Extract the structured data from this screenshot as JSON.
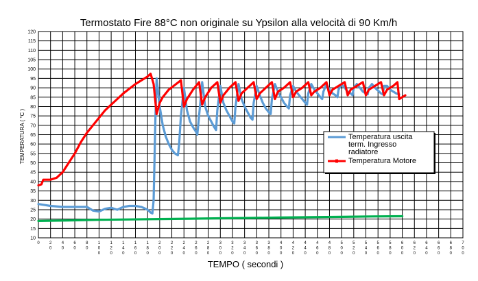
{
  "chart_data": {
    "type": "line",
    "title": "Termostato Fire 88°C  non originale su  Ypsilon alla velocità di 90 Km/h",
    "xlabel": "TEMPO  ( secondi  )",
    "ylabel": "TEMPERATURA  ( °C )",
    "ylim": [
      10,
      120
    ],
    "yticks": [
      10,
      15,
      20,
      25,
      30,
      35,
      40,
      45,
      50,
      55,
      60,
      65,
      70,
      75,
      80,
      85,
      90,
      95,
      100,
      105,
      110,
      115,
      120
    ],
    "xlim": [
      0,
      700
    ],
    "xticks": [
      0,
      20,
      40,
      60,
      80,
      100,
      120,
      140,
      160,
      180,
      200,
      220,
      240,
      260,
      280,
      300,
      320,
      340,
      360,
      380,
      400,
      420,
      440,
      460,
      480,
      500,
      520,
      540,
      560,
      580,
      600,
      620,
      640,
      660,
      680,
      700
    ],
    "xticklabels": [
      "0",
      "2\n0",
      "4\n0",
      "6\n0",
      "8\n0",
      "1\n0\n0",
      "1\n2\n0",
      "1\n4\n0",
      "1\n6\n0",
      "1\n8\n0",
      "2\n0\n0",
      "2\n2\n0",
      "2\n4\n0",
      "2\n6\n0",
      "2\n8\n0",
      "3\n0\n0",
      "3\n2\n0",
      "3\n4\n0",
      "3\n6\n0",
      "3\n8\n0",
      "4\n0\n0",
      "4\n2\n0",
      "4\n4\n0",
      "4\n6\n0",
      "4\n8\n0",
      "5\n0\n0",
      "5\n2\n0",
      "5\n4\n0",
      "5\n6\n0",
      "5\n8\n0",
      "6\n0\n0",
      "6\n2\n0",
      "6\n4\n0",
      "6\n6\n0",
      "6\n8\n0",
      "7\n0\n0"
    ],
    "grid": true,
    "legend_position": "right",
    "series": [
      {
        "name": "Temperatura uscita term. Ingresso radiatore",
        "legend_lines": [
          "Temperatura uscita",
          "term. Ingresso",
          "radiatore"
        ],
        "color": "#5b9bd5",
        "x": [
          0,
          10,
          20,
          40,
          60,
          80,
          90,
          100,
          110,
          120,
          130,
          140,
          150,
          160,
          170,
          180,
          185,
          188,
          190,
          193,
          195,
          200,
          205,
          210,
          215,
          220,
          225,
          230,
          232,
          235,
          240,
          245,
          250,
          255,
          260,
          262,
          265,
          270,
          275,
          280,
          285,
          290,
          293,
          295,
          300,
          305,
          310,
          315,
          320,
          323,
          325,
          330,
          335,
          340,
          345,
          350,
          353,
          355,
          360,
          365,
          370,
          375,
          380,
          383,
          385,
          390,
          395,
          400,
          405,
          410,
          413,
          415,
          420,
          425,
          430,
          435,
          440,
          443,
          445,
          450,
          455,
          460,
          465,
          468,
          470,
          475,
          480,
          485,
          490,
          493,
          495,
          500,
          505,
          510,
          515,
          518,
          520,
          525,
          530,
          535,
          540,
          543,
          545,
          550,
          555,
          560,
          565,
          568,
          570,
          575,
          580,
          585,
          590,
          595
        ],
        "y": [
          28,
          27.5,
          27,
          26.5,
          26.5,
          26.5,
          24.5,
          24,
          25.5,
          26,
          25,
          26.5,
          27,
          27,
          26.5,
          25,
          23.5,
          23,
          30,
          75,
          95,
          80,
          70,
          64,
          60,
          57,
          55,
          54,
          60,
          75,
          90,
          78,
          72,
          69,
          66.5,
          65,
          75,
          93,
          80,
          75,
          72,
          69,
          67.5,
          78,
          91,
          82,
          78,
          75,
          72,
          71,
          80,
          92,
          84,
          80,
          77,
          74,
          73,
          82,
          91,
          86,
          82,
          79,
          77,
          76,
          84,
          92,
          88,
          85,
          82,
          80,
          79,
          86,
          91,
          88,
          86,
          84,
          82,
          81,
          87,
          92,
          89,
          87,
          85,
          84,
          88,
          92,
          89,
          87,
          86,
          85,
          89,
          92,
          90,
          88,
          87,
          86,
          90,
          92,
          90,
          88,
          87,
          86.5,
          90,
          92,
          90,
          88.5,
          87,
          86.5,
          91,
          91,
          89,
          88,
          87,
          86.5
        ]
      },
      {
        "name": "Temperatura Motore",
        "legend_lines": [
          "Temperatura Motore"
        ],
        "color": "#ff0000",
        "x": [
          0,
          5,
          8,
          20,
          30,
          40,
          50,
          60,
          70,
          80,
          90,
          100,
          110,
          120,
          130,
          140,
          150,
          160,
          170,
          180,
          185,
          190,
          195,
          200,
          205,
          215,
          225,
          235,
          240,
          245,
          255,
          265,
          270,
          275,
          285,
          295,
          300,
          305,
          315,
          325,
          330,
          335,
          345,
          355,
          360,
          365,
          375,
          385,
          390,
          395,
          405,
          415,
          420,
          425,
          435,
          445,
          450,
          455,
          465,
          475,
          480,
          485,
          495,
          505,
          510,
          515,
          525,
          535,
          540,
          545,
          555,
          565,
          570,
          575,
          585,
          592,
          595,
          600,
          605
        ],
        "y": [
          38,
          38.5,
          41,
          41,
          42,
          45,
          50,
          55,
          61,
          66,
          70,
          74,
          78,
          81,
          84,
          87,
          89.5,
          92,
          94,
          96,
          97.5,
          92,
          76,
          82,
          85,
          89,
          91.5,
          94,
          80,
          84,
          89,
          93,
          81,
          85,
          90,
          93,
          82,
          86,
          90,
          93,
          83,
          87,
          90,
          93,
          84,
          87,
          90,
          93,
          84,
          88,
          90,
          93,
          85,
          88,
          90,
          93,
          86,
          88,
          90,
          93,
          86,
          89,
          91,
          93,
          86,
          89,
          91,
          93,
          86,
          89,
          91,
          93,
          86,
          89,
          91,
          93,
          84,
          85,
          86
        ]
      },
      {
        "name": "",
        "legend_lines": [],
        "color": "#00b050",
        "x": [
          0,
          50,
          100,
          150,
          200,
          250,
          300,
          350,
          400,
          450,
          500,
          550,
          600
        ],
        "y": [
          19,
          19.3,
          19.6,
          19.8,
          20,
          20.2,
          20.4,
          20.6,
          20.8,
          21,
          21.2,
          21.4,
          21.5
        ]
      }
    ]
  }
}
